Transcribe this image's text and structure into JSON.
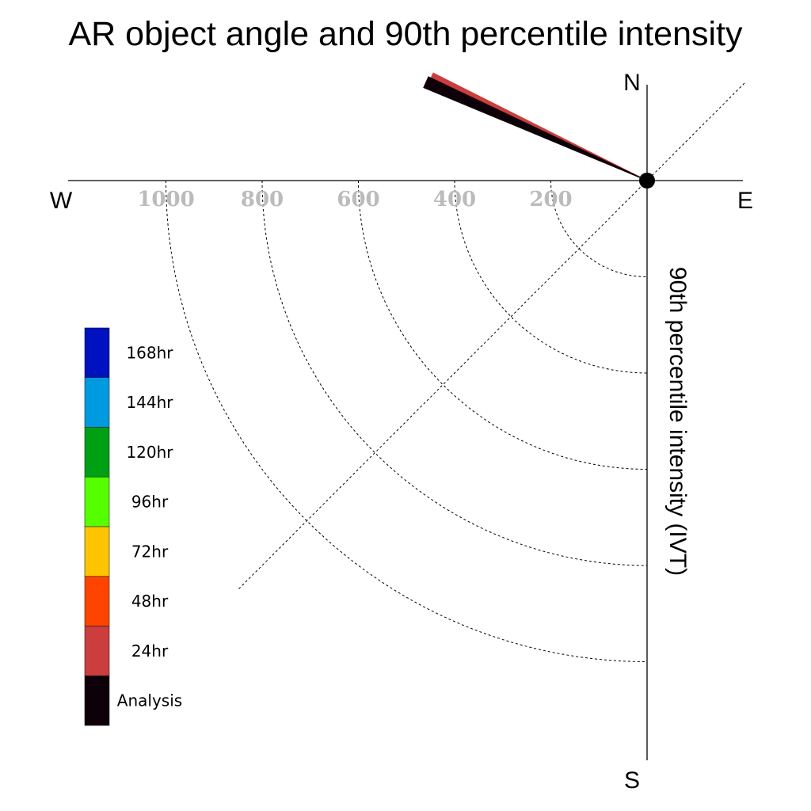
{
  "chart_data": {
    "type": "polar-vector",
    "title": "AR object angle and 90th percentile intensity",
    "radial_label": "90th percentile intensity (IVT)",
    "directions": {
      "north": "N",
      "south": "S",
      "east": "E",
      "west": "W"
    },
    "radial_ticks": [
      {
        "value": 200,
        "label": "200"
      },
      {
        "value": 400,
        "label": "400"
      },
      {
        "value": 600,
        "label": "600"
      },
      {
        "value": 800,
        "label": "800"
      },
      {
        "value": 1000,
        "label": "1000"
      }
    ],
    "radial_max": 1200,
    "grid_rings": true,
    "diagonal_guide": true,
    "legend_placement": "lower-left",
    "legend": [
      {
        "label": "168hr",
        "color": "#0011c0"
      },
      {
        "label": "144hr",
        "color": "#009ae0"
      },
      {
        "label": "120hr",
        "color": "#00a014"
      },
      {
        "label": "96hr",
        "color": "#55ff00"
      },
      {
        "label": "72hr",
        "color": "#ffc400"
      },
      {
        "label": "48hr",
        "color": "#ff4400"
      },
      {
        "label": "24hr",
        "color": "#cc3d3d"
      },
      {
        "label": "Analysis",
        "color": "#0d0008"
      }
    ],
    "series": [
      {
        "name": "24hr",
        "color": "#cc3d3d",
        "angle_deg": 295,
        "value": 440
      },
      {
        "name": "Analysis",
        "color": "#0d0008",
        "angle_deg": 294,
        "value": 445
      }
    ]
  }
}
